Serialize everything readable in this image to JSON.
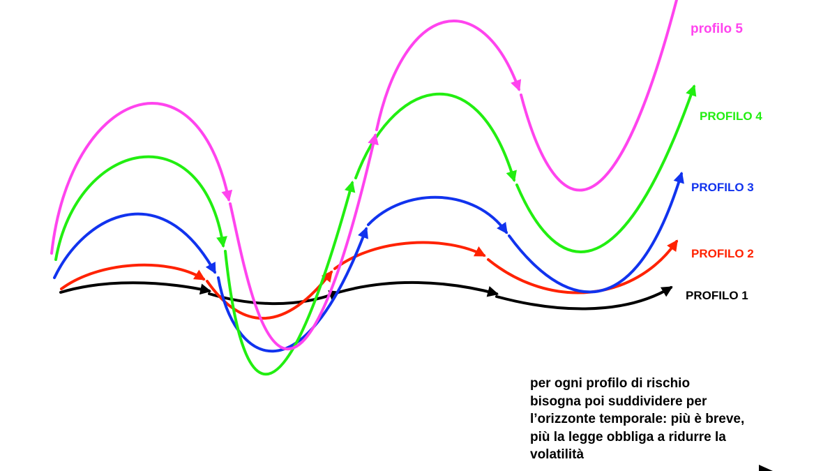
{
  "profiles": [
    {
      "key": "p1",
      "label": "PROFILO 1",
      "color": "#000000"
    },
    {
      "key": "p2",
      "label": "PROFILO 2",
      "color": "#ff2200"
    },
    {
      "key": "p3",
      "label": "PROFILO 3",
      "color": "#1133ee"
    },
    {
      "key": "p4",
      "label": "PROFILO 4",
      "color": "#22ee11"
    },
    {
      "key": "p5",
      "label": "profilo 5",
      "color": "#ff44ee"
    }
  ],
  "note": {
    "lines": [
      "per ogni profilo di rischio",
      "bisogna poi suddividere per",
      "l’orizzonte temporale: più è breve,",
      "più la legge obbliga a ridurre la",
      "volatilità"
    ]
  }
}
